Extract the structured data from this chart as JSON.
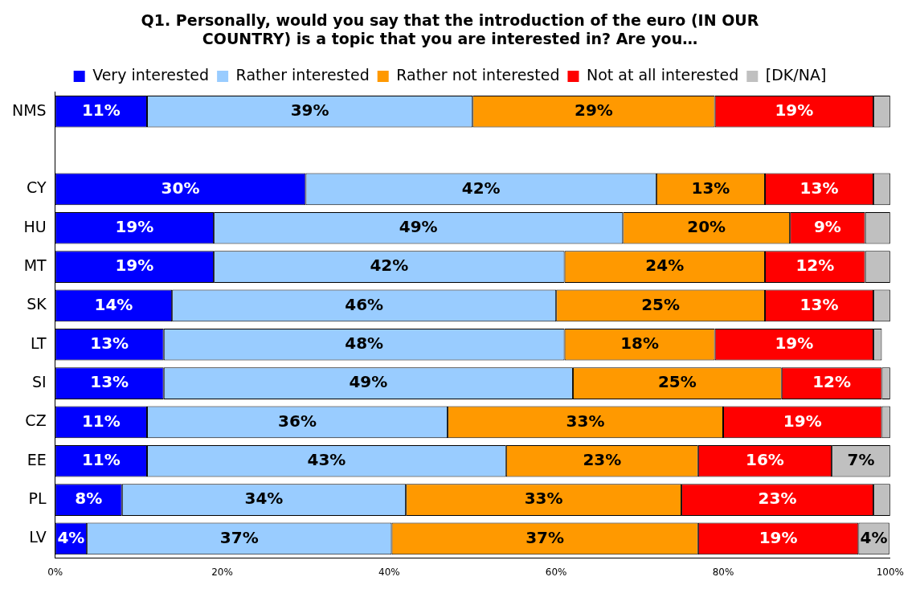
{
  "chart_data": {
    "type": "bar",
    "orientation": "horizontal",
    "stacked": true,
    "title": "Q1. Personally, would you say that the introduction of the euro (IN OUR COUNTRY) is a topic that you are interested in? Are you…",
    "categories": [
      "NMS",
      null,
      "CY",
      "HU",
      "MT",
      "SK",
      "LT",
      "SI",
      "CZ",
      "EE",
      "PL",
      "LV"
    ],
    "series": [
      {
        "name": "Very interested",
        "color": "#0000ff",
        "values": [
          11,
          null,
          30,
          19,
          19,
          14,
          13,
          13,
          11,
          11,
          8,
          3.8
        ],
        "value_labels": [
          "11%",
          null,
          "30%",
          "19%",
          "19%",
          "14%",
          "13%",
          "13%",
          "11%",
          "11%",
          "8%",
          "4%"
        ]
      },
      {
        "name": "Rather interested",
        "color": "#99ccff",
        "values": [
          39,
          null,
          42,
          49,
          42,
          46,
          48,
          49,
          36,
          43,
          34,
          36.5
        ],
        "value_labels": [
          "39%",
          null,
          "42%",
          "49%",
          "42%",
          "46%",
          "48%",
          "49%",
          "36%",
          "43%",
          "34%",
          "37%"
        ]
      },
      {
        "name": "Rather not interested",
        "color": "#ff9900",
        "values": [
          29,
          null,
          13,
          20,
          24,
          25,
          18,
          25,
          33,
          23,
          33,
          36.7
        ],
        "value_labels": [
          "29%",
          null,
          "13%",
          "20%",
          "24%",
          "25%",
          "18%",
          "25%",
          "33%",
          "23%",
          "33%",
          "37%"
        ]
      },
      {
        "name": "Not at all interested",
        "color": "#ff0000",
        "values": [
          19,
          null,
          13,
          9,
          12,
          13,
          19,
          12,
          19,
          16,
          23,
          19.2
        ],
        "value_labels": [
          "19%",
          null,
          "13%",
          "9%",
          "12%",
          "13%",
          "19%",
          "12%",
          "19%",
          "16%",
          "23%",
          "19%"
        ]
      },
      {
        "name": "[DK/NA]",
        "color": "#c0c0c0",
        "values": [
          2,
          null,
          2,
          3,
          3,
          2,
          1,
          1,
          1,
          7,
          2,
          3.7
        ],
        "value_labels": [
          null,
          null,
          null,
          null,
          null,
          null,
          null,
          null,
          null,
          "7%",
          null,
          "4%"
        ]
      }
    ],
    "xlim": [
      0,
      100
    ],
    "xticks": [
      {
        "value": 0,
        "label": "0%"
      },
      {
        "value": 20,
        "label": "20%"
      },
      {
        "value": 40,
        "label": "40%"
      },
      {
        "value": 60,
        "label": "60%"
      },
      {
        "value": 80,
        "label": "80%"
      },
      {
        "value": 100,
        "label": "100%"
      }
    ],
    "grid": false,
    "legend": "top"
  }
}
